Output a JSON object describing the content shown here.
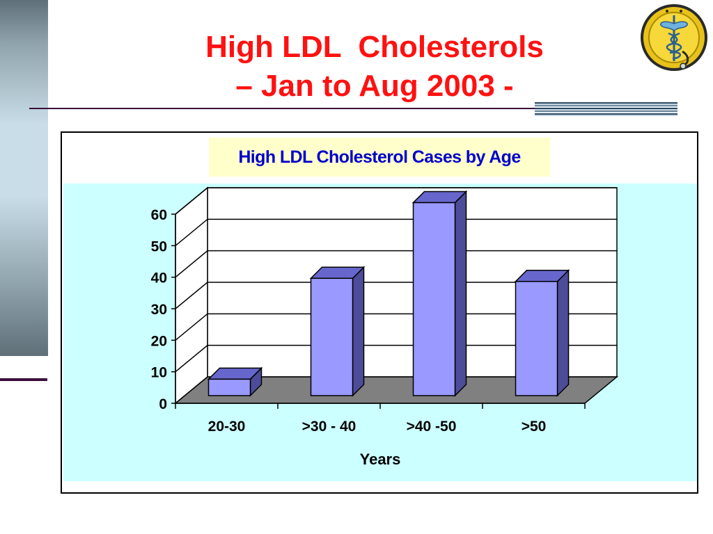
{
  "slide": {
    "title_line1": "High LDL  Cholesterols",
    "title_line2": "– Jan to Aug 2003 -"
  },
  "colors": {
    "title": "#ff1111",
    "chart_title": "#0000cc",
    "chart_title_bg": "#ffffcc",
    "plot_bg": "#ccffff",
    "bar_front": "#9999ff",
    "bar_side": "#4c4c99",
    "floor": "#808080"
  },
  "logo": {
    "icon": "caduceus-medical-seal"
  },
  "chart_data": {
    "type": "bar",
    "title": "High LDL Cholesterol Cases by Age",
    "xlabel": "Years",
    "ylabel": "",
    "categories": [
      "20-30",
      ">30 - 40",
      ">40 -50",
      ">50"
    ],
    "values": [
      5,
      37,
      61,
      36
    ],
    "ylim": [
      0,
      60
    ],
    "yticks": [
      0,
      10,
      20,
      30,
      40,
      50,
      60
    ],
    "grid": true,
    "legend": "none",
    "style": "3d-column"
  }
}
